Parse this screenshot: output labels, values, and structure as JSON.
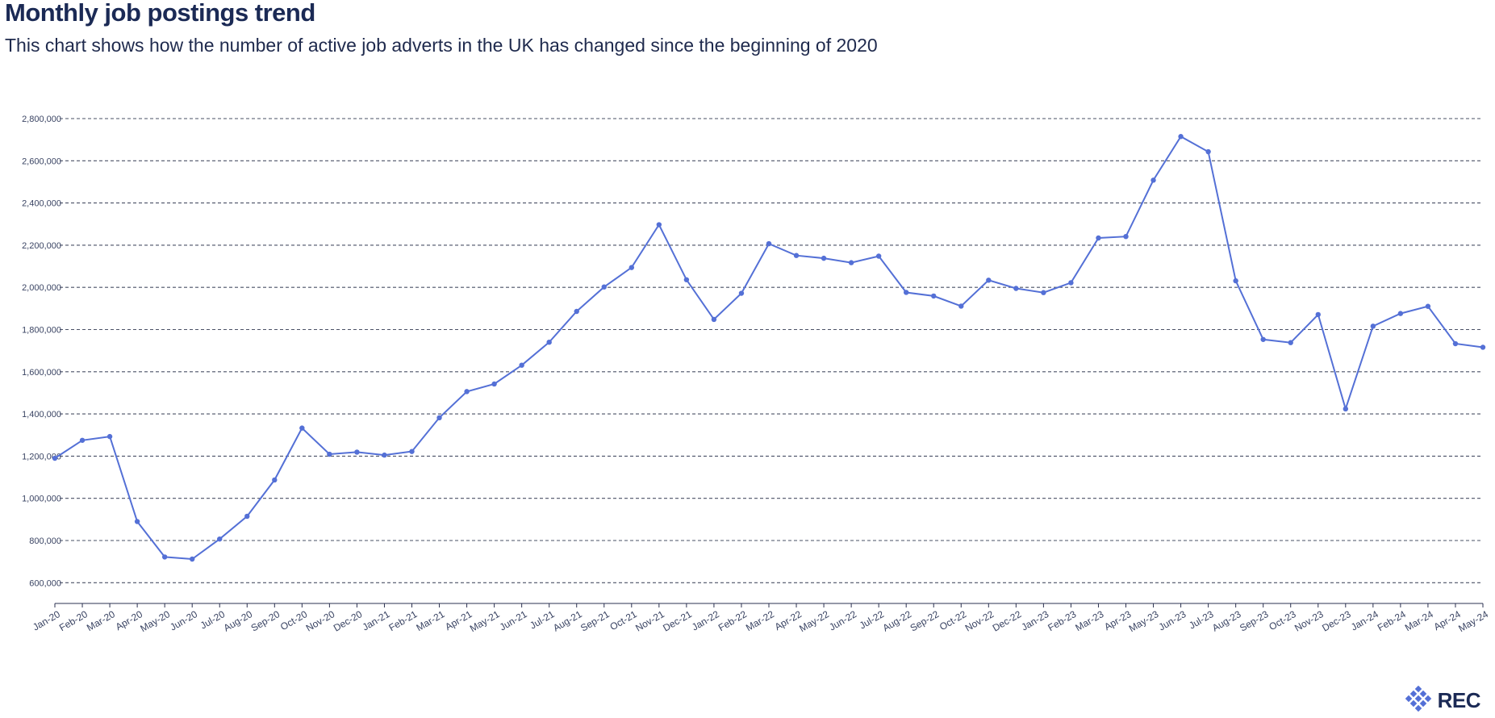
{
  "header": {
    "title": "Monthly job postings trend",
    "subtitle": "This chart shows how the number of active job adverts in the UK has changed since the beginning of 2020"
  },
  "logo": {
    "text": "REC",
    "icon": "rec-diamond-icon"
  },
  "colors": {
    "line": "#5470d6",
    "title": "#1b2a55",
    "grid": "#4a5066"
  },
  "chart_data": {
    "type": "line",
    "title": "Monthly job postings trend",
    "xlabel": "",
    "ylabel": "",
    "ylim": [
      500000,
      2800000
    ],
    "yticks": [
      600000,
      800000,
      1000000,
      1200000,
      1400000,
      1600000,
      1800000,
      2000000,
      2200000,
      2400000,
      2600000,
      2800000
    ],
    "ytick_labels": [
      "600,000",
      "800,000",
      "1,000,000",
      "1,200,000",
      "1,400,000",
      "1,600,000",
      "1,800,000",
      "2,000,000",
      "2,200,000",
      "2,400,000",
      "2,600,000",
      "2,800,000"
    ],
    "grid": true,
    "legend": "none",
    "categories": [
      "Jan-20",
      "Feb-20",
      "Mar-20",
      "Apr-20",
      "May-20",
      "Jun-20",
      "Jul-20",
      "Aug-20",
      "Sep-20",
      "Oct-20",
      "Nov-20",
      "Dec-20",
      "Jan-21",
      "Feb-21",
      "Mar-21",
      "Apr-21",
      "May-21",
      "Jun-21",
      "Jul-21",
      "Aug-21",
      "Sep-21",
      "Oct-21",
      "Nov-21",
      "Dec-21",
      "Jan-22",
      "Feb-22",
      "Mar-22",
      "Apr-22",
      "May-22",
      "Jun-22",
      "Jul-22",
      "Aug-22",
      "Sep-22",
      "Oct-22",
      "Nov-22",
      "Dec-22",
      "Jan-23",
      "Feb-23",
      "Mar-23",
      "Apr-23",
      "May-23",
      "Jun-23",
      "Jul-23",
      "Aug-23",
      "Sep-23",
      "Oct-23",
      "Nov-23",
      "Dec-23",
      "Jan-24",
      "Feb-24",
      "Mar-24",
      "Apr-24",
      "May-24"
    ],
    "series": [
      {
        "values": [
          1190000,
          1275000,
          1293000,
          890000,
          722000,
          712000,
          807000,
          915000,
          1087000,
          1333000,
          1209000,
          1219000,
          1205000,
          1222000,
          1382000,
          1506000,
          1542000,
          1631000,
          1740000,
          1886000,
          2002000,
          2094000,
          2297000,
          2036000,
          1848000,
          1972000,
          2207000,
          2151000,
          2138000,
          2117000,
          2148000,
          1976000,
          1959000,
          1911000,
          2034000,
          1995000,
          1975000,
          2022000,
          2234000,
          2241000,
          2508000,
          2715000,
          2643000,
          2031000,
          1753000,
          1738000,
          1871000,
          1424000,
          1816000,
          1876000,
          1910000,
          1733000,
          1716000
        ]
      }
    ]
  }
}
